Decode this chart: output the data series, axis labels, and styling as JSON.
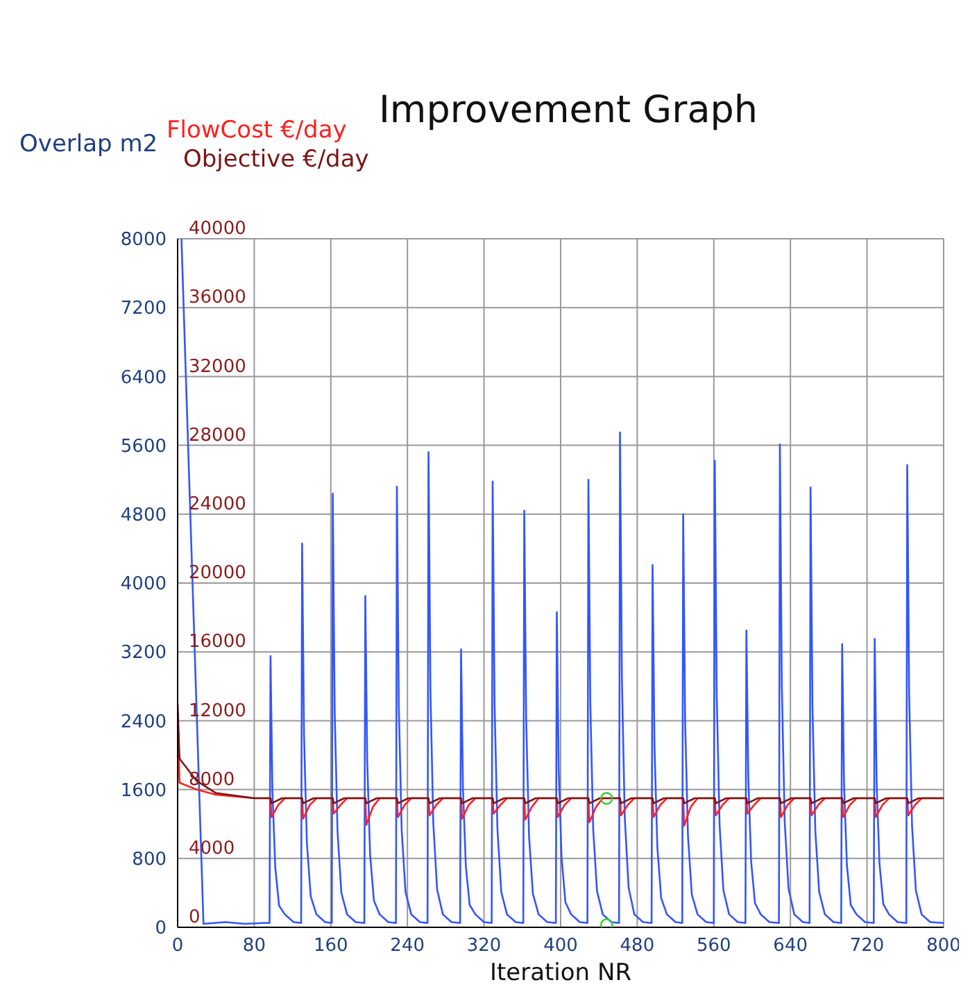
{
  "chart_data": {
    "type": "line",
    "title": "Improvement Graph",
    "xlabel": "Iteration NR",
    "ylabel": "Overlap m2",
    "xlim": [
      0,
      800
    ],
    "xticks": [
      0,
      80,
      160,
      240,
      320,
      400,
      480,
      560,
      640,
      720,
      800
    ],
    "ylim": [
      0,
      8000
    ],
    "yticks": [
      0,
      800,
      1600,
      2400,
      3200,
      4000,
      4800,
      5600,
      6400,
      7200,
      8000
    ],
    "y2lim": [
      0,
      40000
    ],
    "y2ticks": [
      0,
      4000,
      8000,
      12000,
      16000,
      20000,
      24000,
      28000,
      32000,
      36000,
      40000
    ],
    "grid": true,
    "legend": "top left",
    "marker": "none",
    "line_style": "solid",
    "series": [
      {
        "color": "#3355ff",
        "x": [
          4,
          27,
          50,
          70,
          90,
          96,
          97,
          99,
          102,
          106,
          112,
          121,
          129,
          130,
          132,
          135,
          139,
          145,
          154,
          161,
          162,
          164,
          167,
          171,
          177,
          186,
          195,
          196,
          198,
          201,
          205,
          211,
          220,
          228,
          229,
          231,
          234,
          238,
          244,
          253,
          261,
          262,
          264,
          267,
          271,
          277,
          286,
          295,
          296,
          298,
          301,
          305,
          311,
          320,
          328,
          329,
          331,
          334,
          338,
          344,
          353,
          361,
          362,
          364,
          367,
          371,
          377,
          386,
          395,
          396,
          398,
          401,
          405,
          411,
          420,
          428,
          429,
          431,
          434,
          438,
          444,
          453,
          461,
          462,
          464,
          467,
          471,
          477,
          486,
          495,
          496,
          498,
          501,
          505,
          511,
          520,
          527,
          528,
          530,
          533,
          537,
          543,
          552,
          560,
          561,
          563,
          566,
          570,
          576,
          585,
          593,
          594,
          596,
          599,
          603,
          609,
          618,
          628,
          629,
          631,
          634,
          638,
          644,
          653,
          660,
          661,
          663,
          666,
          670,
          676,
          685,
          693,
          694,
          696,
          699,
          703,
          709,
          718,
          727,
          728,
          730,
          733,
          737,
          743,
          752,
          761,
          762,
          764,
          767,
          771,
          777,
          786,
          800
        ],
        "values": [
          8000,
          40,
          60,
          40,
          50,
          50,
          3150,
          1580,
          690,
          250,
          150,
          60,
          50,
          4460,
          2230,
          980,
          360,
          150,
          60,
          50,
          5040,
          2520,
          1110,
          400,
          150,
          60,
          50,
          3850,
          1930,
          850,
          310,
          150,
          60,
          50,
          5120,
          2560,
          1130,
          410,
          150,
          60,
          50,
          5520,
          2760,
          1210,
          440,
          150,
          60,
          50,
          3230,
          1620,
          710,
          260,
          150,
          60,
          50,
          5180,
          2590,
          1140,
          410,
          150,
          60,
          50,
          4840,
          2420,
          1060,
          390,
          150,
          60,
          50,
          3660,
          1830,
          810,
          290,
          150,
          60,
          50,
          5200,
          2600,
          1140,
          420,
          150,
          60,
          50,
          5750,
          2880,
          1270,
          460,
          150,
          60,
          50,
          4210,
          2110,
          930,
          340,
          150,
          60,
          50,
          4800,
          2400,
          1060,
          380,
          150,
          60,
          50,
          5420,
          2710,
          1190,
          430,
          150,
          60,
          50,
          3450,
          1730,
          760,
          280,
          150,
          60,
          50,
          5610,
          2810,
          1230,
          450,
          150,
          60,
          50,
          5110,
          2560,
          1120,
          410,
          150,
          60,
          50,
          3290,
          1650,
          720,
          260,
          150,
          60,
          50,
          3350,
          1680,
          740,
          270,
          150,
          60,
          50,
          5370,
          2690,
          1180,
          430,
          150,
          60,
          50
        ]
      },
      {
        "name": "FlowCost €/day",
        "color": "#ff2020",
        "axis": "y2",
        "x": [
          0,
          2,
          20,
          40,
          80,
          97,
          98,
          105,
          112,
          130,
          131,
          138,
          145,
          162,
          163,
          170,
          177,
          196,
          197,
          204,
          211,
          229,
          230,
          237,
          244,
          262,
          263,
          270,
          277,
          296,
          297,
          304,
          311,
          329,
          330,
          337,
          344,
          362,
          363,
          370,
          377,
          396,
          397,
          404,
          411,
          429,
          430,
          437,
          444,
          462,
          463,
          470,
          477,
          496,
          497,
          504,
          511,
          528,
          529,
          536,
          543,
          561,
          562,
          569,
          576,
          594,
          595,
          602,
          609,
          629,
          630,
          637,
          644,
          661,
          662,
          669,
          676,
          694,
          695,
          702,
          709,
          728,
          729,
          736,
          743,
          762,
          763,
          770,
          777,
          800
        ],
        "values": [
          12500,
          8400,
          8000,
          7700,
          7500,
          7500,
          6400,
          7100,
          7500,
          7500,
          6300,
          7100,
          7500,
          7500,
          6600,
          7100,
          7500,
          7500,
          5950,
          7000,
          7500,
          7500,
          6400,
          7100,
          7500,
          7500,
          6500,
          7100,
          7500,
          7500,
          6300,
          7100,
          7500,
          7500,
          6600,
          7100,
          7500,
          7500,
          6250,
          7000,
          7500,
          7500,
          6400,
          7100,
          7500,
          7500,
          6100,
          7000,
          7500,
          7500,
          6500,
          7100,
          7500,
          7500,
          6400,
          7100,
          7500,
          7500,
          5900,
          7000,
          7500,
          7500,
          6500,
          7100,
          7500,
          7500,
          6600,
          7100,
          7500,
          7500,
          6400,
          7100,
          7500,
          7500,
          6500,
          7100,
          7500,
          7500,
          6400,
          7100,
          7500,
          7500,
          6400,
          7100,
          7500,
          7500,
          6500,
          7100,
          7500,
          7500
        ]
      },
      {
        "name": "Objective  €/day",
        "color": "#7a1515",
        "axis": "y2",
        "x": [
          0,
          2,
          20,
          40,
          80,
          97,
          98,
          109,
          130,
          131,
          142,
          162,
          163,
          174,
          196,
          197,
          208,
          229,
          230,
          241,
          262,
          263,
          274,
          296,
          297,
          308,
          329,
          330,
          341,
          362,
          363,
          374,
          396,
          397,
          408,
          429,
          430,
          441,
          462,
          463,
          474,
          496,
          497,
          508,
          528,
          529,
          540,
          561,
          562,
          573,
          594,
          595,
          606,
          629,
          630,
          641,
          661,
          662,
          673,
          694,
          695,
          706,
          728,
          729,
          740,
          762,
          763,
          774,
          800
        ],
        "values": [
          13000,
          9800,
          8500,
          7800,
          7500,
          7500,
          7200,
          7500,
          7500,
          7200,
          7500,
          7500,
          7200,
          7500,
          7500,
          7200,
          7500,
          7500,
          7200,
          7500,
          7500,
          7200,
          7500,
          7500,
          7200,
          7500,
          7500,
          7200,
          7500,
          7500,
          7200,
          7500,
          7500,
          7200,
          7500,
          7500,
          7200,
          7500,
          7500,
          7200,
          7500,
          7500,
          7200,
          7500,
          7500,
          7200,
          7500,
          7500,
          7200,
          7500,
          7500,
          7200,
          7500,
          7500,
          7200,
          7500,
          7500,
          7200,
          7500,
          7500,
          7200,
          7500,
          7500,
          7200,
          7500,
          7500,
          7200,
          7500,
          7500
        ]
      },
      {
        "type": "scatter",
        "color": "#33cc33",
        "marker": "circle",
        "x": [
          448
        ],
        "values": [
          30
        ]
      },
      {
        "type": "scatter",
        "color": "#33cc33",
        "marker": "circle",
        "axis": "y2",
        "x": [
          448
        ],
        "values": [
          7490
        ]
      }
    ]
  }
}
